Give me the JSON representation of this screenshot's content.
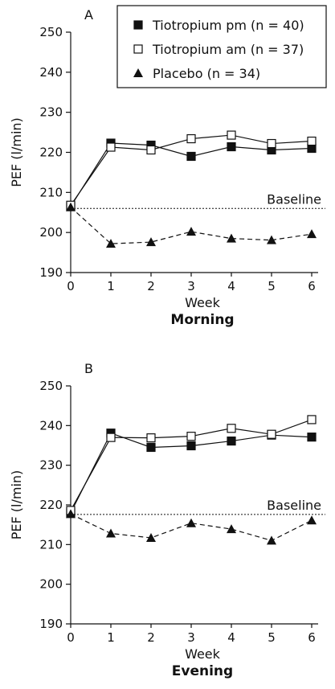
{
  "chart_data": [
    {
      "type": "line",
      "panel_label": "A",
      "title": "Morning",
      "xlabel": "Week",
      "ylabel": "PEF (l/min)",
      "x": [
        0,
        1,
        2,
        3,
        4,
        5,
        6
      ],
      "xticks": [
        "0",
        "1",
        "2",
        "3",
        "4",
        "5",
        "6"
      ],
      "ylim": [
        190,
        250
      ],
      "yticks": [
        "190",
        "200",
        "210",
        "220",
        "230",
        "240",
        "250"
      ],
      "series": [
        {
          "name": "Tiotropium pm (n = 40)",
          "marker": "filled-square",
          "line": "solid",
          "values": [
            206.5,
            222.3,
            221.8,
            219.0,
            221.4,
            220.6,
            221.0
          ]
        },
        {
          "name": "Tiotropium am (n = 37)",
          "marker": "open-square",
          "line": "solid",
          "values": [
            206.8,
            221.3,
            220.6,
            223.4,
            224.3,
            222.2,
            222.8
          ]
        },
        {
          "name": "Placebo (n = 34)",
          "marker": "filled-triangle",
          "line": "dashed",
          "values": [
            206.3,
            197.2,
            197.6,
            200.2,
            198.5,
            198.1,
            199.6
          ]
        }
      ],
      "reference_line": {
        "label": "Baseline",
        "value": 206
      },
      "legend": "top-right",
      "grid": false
    },
    {
      "type": "line",
      "panel_label": "B",
      "title": "Evening",
      "xlabel": "Week",
      "ylabel": "PEF (l/min)",
      "x": [
        0,
        1,
        2,
        3,
        4,
        5,
        6
      ],
      "xticks": [
        "0",
        "1",
        "2",
        "3",
        "4",
        "5",
        "6"
      ],
      "ylim": [
        190,
        250
      ],
      "yticks": [
        "190",
        "200",
        "210",
        "220",
        "230",
        "240",
        "250"
      ],
      "series": [
        {
          "name": "Tiotropium pm (n = 40)",
          "marker": "filled-square",
          "line": "solid",
          "values": [
            218.0,
            238.1,
            234.5,
            234.9,
            236.1,
            237.6,
            237.1
          ]
        },
        {
          "name": "Tiotropium am (n = 37)",
          "marker": "open-square",
          "line": "solid",
          "values": [
            218.6,
            237.0,
            236.9,
            237.3,
            239.3,
            237.8,
            241.5
          ]
        },
        {
          "name": "Placebo (n = 34)",
          "marker": "filled-triangle",
          "line": "dashed",
          "values": [
            217.7,
            212.8,
            211.7,
            215.4,
            213.9,
            211.0,
            216.1
          ]
        }
      ],
      "reference_line": {
        "label": "Baseline",
        "value": 217.6
      },
      "legend": "none",
      "grid": false
    }
  ],
  "colors": {
    "ink": "#111111",
    "background": "#ffffff"
  }
}
